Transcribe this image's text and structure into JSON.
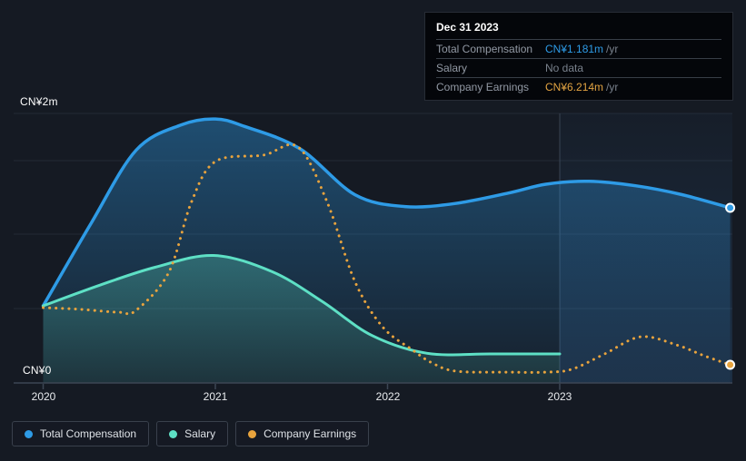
{
  "y_axis": {
    "top_label": "CN¥2m",
    "bottom_label": "CN¥0"
  },
  "x_axis": {
    "ticks": [
      "2020",
      "2021",
      "2022",
      "2023"
    ]
  },
  "tooltip": {
    "date": "Dec 31 2023",
    "rows": [
      {
        "label": "Total Compensation",
        "value": "CN¥1.181m",
        "suffix": "/yr"
      },
      {
        "label": "Salary",
        "value": "No data",
        "suffix": ""
      },
      {
        "label": "Company Earnings",
        "value": "CN¥6.214m",
        "suffix": "/yr"
      }
    ]
  },
  "legend": [
    {
      "label": "Total Compensation",
      "color": "#2e9be6"
    },
    {
      "label": "Salary",
      "color": "#5ee0c5"
    },
    {
      "label": "Company Earnings",
      "color": "#e8a33d"
    }
  ],
  "colors": {
    "background": "#151a23",
    "gridline": "#232a35",
    "axis_line": "#3d4654",
    "year_divider": "#39424f",
    "total_compensation": "#2e9be6",
    "salary": "#5ee0c5",
    "company_earnings": "#e8a33d",
    "highlight_region": "#3b7fc4"
  },
  "chart_data": {
    "type": "area",
    "x": {
      "tick_labels": [
        "2020",
        "2021",
        "2022",
        "2023"
      ],
      "range": [
        2020,
        2024
      ]
    },
    "y": {
      "unit": "CN¥ millions",
      "range": [
        0,
        2
      ],
      "top_tick": "CN¥2m",
      "bottom_tick": "CN¥0"
    },
    "legend_position": "bottom-left",
    "grid": true,
    "highlight_from_year": 2023,
    "series": [
      {
        "name": "Total Compensation",
        "type": "line-area",
        "color": "#2e9be6",
        "unit": "CN¥m",
        "scale": "comp",
        "end_marker": true,
        "end_value_label": "CN¥1.181m /yr",
        "points": [
          [
            2020.0,
            0.52
          ],
          [
            2020.28,
            1.08
          ],
          [
            2020.54,
            1.57
          ],
          [
            2020.8,
            1.74
          ],
          [
            2021.0,
            1.78
          ],
          [
            2021.17,
            1.73
          ],
          [
            2021.49,
            1.58
          ],
          [
            2021.81,
            1.27
          ],
          [
            2022.1,
            1.19
          ],
          [
            2022.39,
            1.21
          ],
          [
            2022.7,
            1.28
          ],
          [
            2022.92,
            1.34
          ],
          [
            2023.17,
            1.36
          ],
          [
            2023.44,
            1.33
          ],
          [
            2023.71,
            1.27
          ],
          [
            2023.99,
            1.181
          ]
        ]
      },
      {
        "name": "Salary",
        "type": "line-area",
        "color": "#5ee0c5",
        "unit": "CN¥m",
        "scale": "comp",
        "end_marker": false,
        "end_value_label": "No data",
        "points": [
          [
            2020.0,
            0.52
          ],
          [
            2020.33,
            0.66
          ],
          [
            2020.65,
            0.78
          ],
          [
            2020.99,
            0.86
          ],
          [
            2021.33,
            0.75
          ],
          [
            2021.62,
            0.55
          ],
          [
            2021.91,
            0.32
          ],
          [
            2022.23,
            0.2
          ],
          [
            2022.6,
            0.196
          ],
          [
            2023.0,
            0.196
          ]
        ]
      },
      {
        "name": "Company Earnings",
        "type": "dotted-line",
        "color": "#e8a33d",
        "unit": "CN¥m (separate earnings scale)",
        "scale": "earnings",
        "end_marker": true,
        "end_value_label": "CN¥6.214m /yr",
        "points": [
          [
            2020.0,
            25.8
          ],
          [
            2020.22,
            25.2
          ],
          [
            2020.44,
            24.2
          ],
          [
            2020.54,
            24.9
          ],
          [
            2020.73,
            37.9
          ],
          [
            2020.86,
            61.8
          ],
          [
            2021.0,
            75.8
          ],
          [
            2021.28,
            78.0
          ],
          [
            2021.48,
            80.8
          ],
          [
            2021.65,
            61.8
          ],
          [
            2021.81,
            34.8
          ],
          [
            2021.97,
            19.3
          ],
          [
            2022.14,
            11.5
          ],
          [
            2022.26,
            6.8
          ],
          [
            2022.4,
            4.0
          ],
          [
            2022.7,
            3.7
          ],
          [
            2022.92,
            3.7
          ],
          [
            2023.07,
            4.7
          ],
          [
            2023.26,
            9.9
          ],
          [
            2023.47,
            15.8
          ],
          [
            2023.68,
            13.0
          ],
          [
            2023.84,
            9.3
          ],
          [
            2023.99,
            6.214
          ]
        ]
      }
    ]
  }
}
